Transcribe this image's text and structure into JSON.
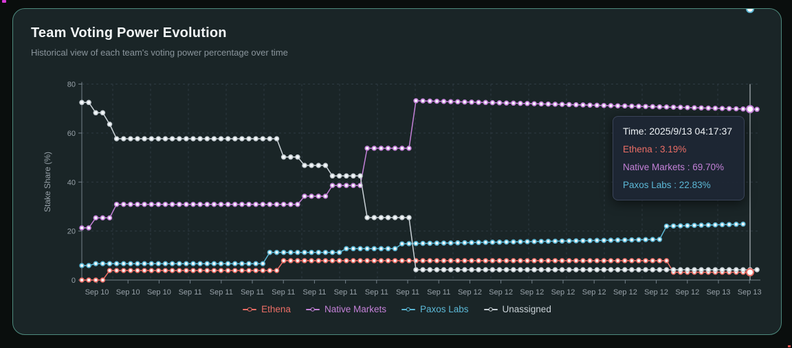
{
  "chart_data": {
    "type": "line",
    "title": "Team Voting Power Evolution",
    "subtitle": "Historical view of each team's voting power percentage over time",
    "ylabel": "Stake Share (%)",
    "ylim": [
      0,
      80
    ],
    "y_ticks": [
      0,
      20,
      40,
      60,
      80
    ],
    "x_tick_labels": [
      "Sep 10",
      "Sep 10",
      "Sep 10",
      "Sep 11",
      "Sep 11",
      "Sep 11",
      "Sep 11",
      "Sep 11",
      "Sep 11",
      "Sep 11",
      "Sep 11",
      "Sep 11",
      "Sep 12",
      "Sep 12",
      "Sep 12",
      "Sep 12",
      "Sep 12",
      "Sep 12",
      "Sep 12",
      "Sep 12",
      "Sep 13",
      "Sep 13"
    ],
    "grid": "dashed",
    "marker": "hollow-circle",
    "legend_position": "bottom",
    "crosshair_at_last_point": true,
    "series": [
      {
        "name": "Ethena",
        "color": "#ec6e66",
        "emphasize_end": true,
        "values": [
          0,
          0,
          0,
          0,
          3.9,
          3.9,
          3.9,
          3.9,
          3.9,
          3.9,
          3.9,
          3.9,
          3.9,
          3.9,
          3.9,
          3.9,
          3.9,
          3.9,
          3.9,
          3.9,
          3.9,
          3.9,
          3.9,
          3.9,
          3.9,
          3.9,
          3.9,
          3.9,
          3.9,
          7.9,
          7.9,
          7.9,
          7.9,
          7.9,
          7.9,
          7.9,
          7.9,
          7.9,
          7.9,
          7.9,
          7.9,
          7.9,
          7.9,
          7.9,
          7.9,
          7.9,
          7.9,
          7.9,
          7.9,
          7.9,
          7.9,
          7.9,
          7.9,
          7.9,
          7.9,
          7.9,
          7.9,
          7.9,
          7.9,
          7.9,
          7.9,
          7.9,
          7.9,
          7.9,
          7.9,
          7.9,
          7.9,
          7.9,
          7.9,
          7.9,
          7.9,
          7.9,
          7.9,
          7.9,
          7.9,
          7.9,
          7.9,
          7.9,
          7.9,
          7.9,
          7.9,
          7.9,
          7.9,
          7.9,
          7.9,
          3.19,
          3.19,
          3.19,
          3.19,
          3.19,
          3.19,
          3.19,
          3.19,
          3.19,
          3.19,
          3.19,
          3.19
        ]
      },
      {
        "name": "Native Markets",
        "color": "#c481d8",
        "emphasize_end": true,
        "values": [
          21.3,
          21.3,
          25.4,
          25.4,
          25.4,
          30.9,
          30.9,
          30.9,
          30.9,
          30.9,
          30.9,
          30.9,
          30.9,
          30.9,
          30.9,
          30.9,
          30.9,
          30.9,
          30.9,
          30.9,
          30.9,
          30.9,
          30.9,
          30.9,
          30.9,
          30.9,
          30.9,
          30.9,
          30.9,
          30.9,
          30.9,
          30.9,
          34.2,
          34.2,
          34.2,
          34.2,
          38.6,
          38.6,
          38.6,
          38.6,
          38.6,
          53.8,
          53.8,
          53.8,
          53.8,
          53.8,
          53.8,
          53.8,
          73.2,
          73.13,
          73.06,
          72.99,
          72.91,
          72.84,
          72.77,
          72.7,
          72.63,
          72.56,
          72.49,
          72.41,
          72.34,
          72.27,
          72.2,
          72.13,
          72.06,
          71.99,
          71.91,
          71.84,
          71.77,
          71.7,
          71.63,
          71.56,
          71.49,
          71.41,
          71.34,
          71.27,
          71.2,
          71.13,
          71.06,
          70.99,
          70.91,
          70.84,
          70.77,
          70.7,
          70.63,
          70.56,
          70.49,
          70.41,
          70.34,
          70.27,
          70.2,
          70.13,
          70.06,
          69.99,
          69.91,
          69.84,
          69.77,
          69.7
        ]
      },
      {
        "name": "Paxos Labs",
        "color": "#5cb8d6",
        "emphasize_end": true,
        "values": [
          5.9,
          5.9,
          6.7,
          6.7,
          6.7,
          6.7,
          6.7,
          6.7,
          6.7,
          6.7,
          6.7,
          6.7,
          6.7,
          6.7,
          6.7,
          6.7,
          6.7,
          6.7,
          6.7,
          6.7,
          6.7,
          6.7,
          6.7,
          6.7,
          6.7,
          6.7,
          6.7,
          11.3,
          11.3,
          11.3,
          11.3,
          11.3,
          11.3,
          11.3,
          11.3,
          11.3,
          11.3,
          11.3,
          12.8,
          12.8,
          12.8,
          12.8,
          12.8,
          12.8,
          12.8,
          12.8,
          14.8,
          14.85,
          14.9,
          14.95,
          14.99,
          15.04,
          15.09,
          15.14,
          15.19,
          15.24,
          15.29,
          15.33,
          15.38,
          15.43,
          15.48,
          15.53,
          15.58,
          15.63,
          15.67,
          15.72,
          15.77,
          15.82,
          15.87,
          15.92,
          15.97,
          16.01,
          16.06,
          16.11,
          16.16,
          16.21,
          16.26,
          16.31,
          16.35,
          16.4,
          16.45,
          16.5,
          16.55,
          16.6,
          22,
          22.08,
          22.15,
          22.23,
          22.3,
          22.38,
          22.45,
          22.53,
          22.6,
          22.68,
          22.75,
          22.83
        ]
      },
      {
        "name": "Unassigned",
        "color": "#c9d1d6",
        "emphasize_end": false,
        "values": [
          72.5,
          72.5,
          68.3,
          68.3,
          63.6,
          57.7,
          57.7,
          57.7,
          57.7,
          57.7,
          57.7,
          57.7,
          57.7,
          57.7,
          57.7,
          57.7,
          57.7,
          57.7,
          57.7,
          57.7,
          57.7,
          57.7,
          57.7,
          57.7,
          57.7,
          57.7,
          57.7,
          57.7,
          57.7,
          50.2,
          50.2,
          50.2,
          46.8,
          46.8,
          46.8,
          46.8,
          42.5,
          42.5,
          42.5,
          42.5,
          42.5,
          25.5,
          25.5,
          25.5,
          25.5,
          25.5,
          25.5,
          25.5,
          4.2,
          4.2,
          4.2,
          4.2,
          4.2,
          4.2,
          4.2,
          4.2,
          4.2,
          4.2,
          4.2,
          4.2,
          4.2,
          4.2,
          4.2,
          4.2,
          4.2,
          4.2,
          4.2,
          4.2,
          4.2,
          4.2,
          4.2,
          4.2,
          4.2,
          4.2,
          4.2,
          4.2,
          4.2,
          4.2,
          4.2,
          4.2,
          4.2,
          4.2,
          4.2,
          4.2,
          4.2,
          4.2,
          4.2,
          4.2,
          4.2,
          4.2,
          4.2,
          4.2,
          4.2,
          4.2,
          4.2,
          4.2,
          4.2,
          4.2
        ]
      }
    ]
  },
  "tooltip": {
    "time_label": "Time: 2025/9/13 04:17:37",
    "rows": [
      {
        "name": "Ethena",
        "value": "3.19%"
      },
      {
        "name": "Native Markets",
        "value": "69.70%"
      },
      {
        "name": "Paxos Labs",
        "value": "22.83%"
      }
    ]
  },
  "legend": {
    "items": [
      "Ethena",
      "Native Markets",
      "Paxos Labs",
      "Unassigned"
    ]
  },
  "theme": {
    "page_bg": "#0a0e0d",
    "card_bg": "#1a2527",
    "card_border_accent": "#4e8b7e",
    "grid_color": "#2f3b43",
    "axis_color": "#76828b",
    "tick_text_color": "#97a1a8",
    "crosshair_color": "#c9d1d7"
  },
  "artifacts": [
    {
      "name": "magenta-speck-top-left",
      "color": "#d63ad6"
    },
    {
      "name": "red-speck-bottom-right",
      "color": "#e0524d"
    }
  ]
}
